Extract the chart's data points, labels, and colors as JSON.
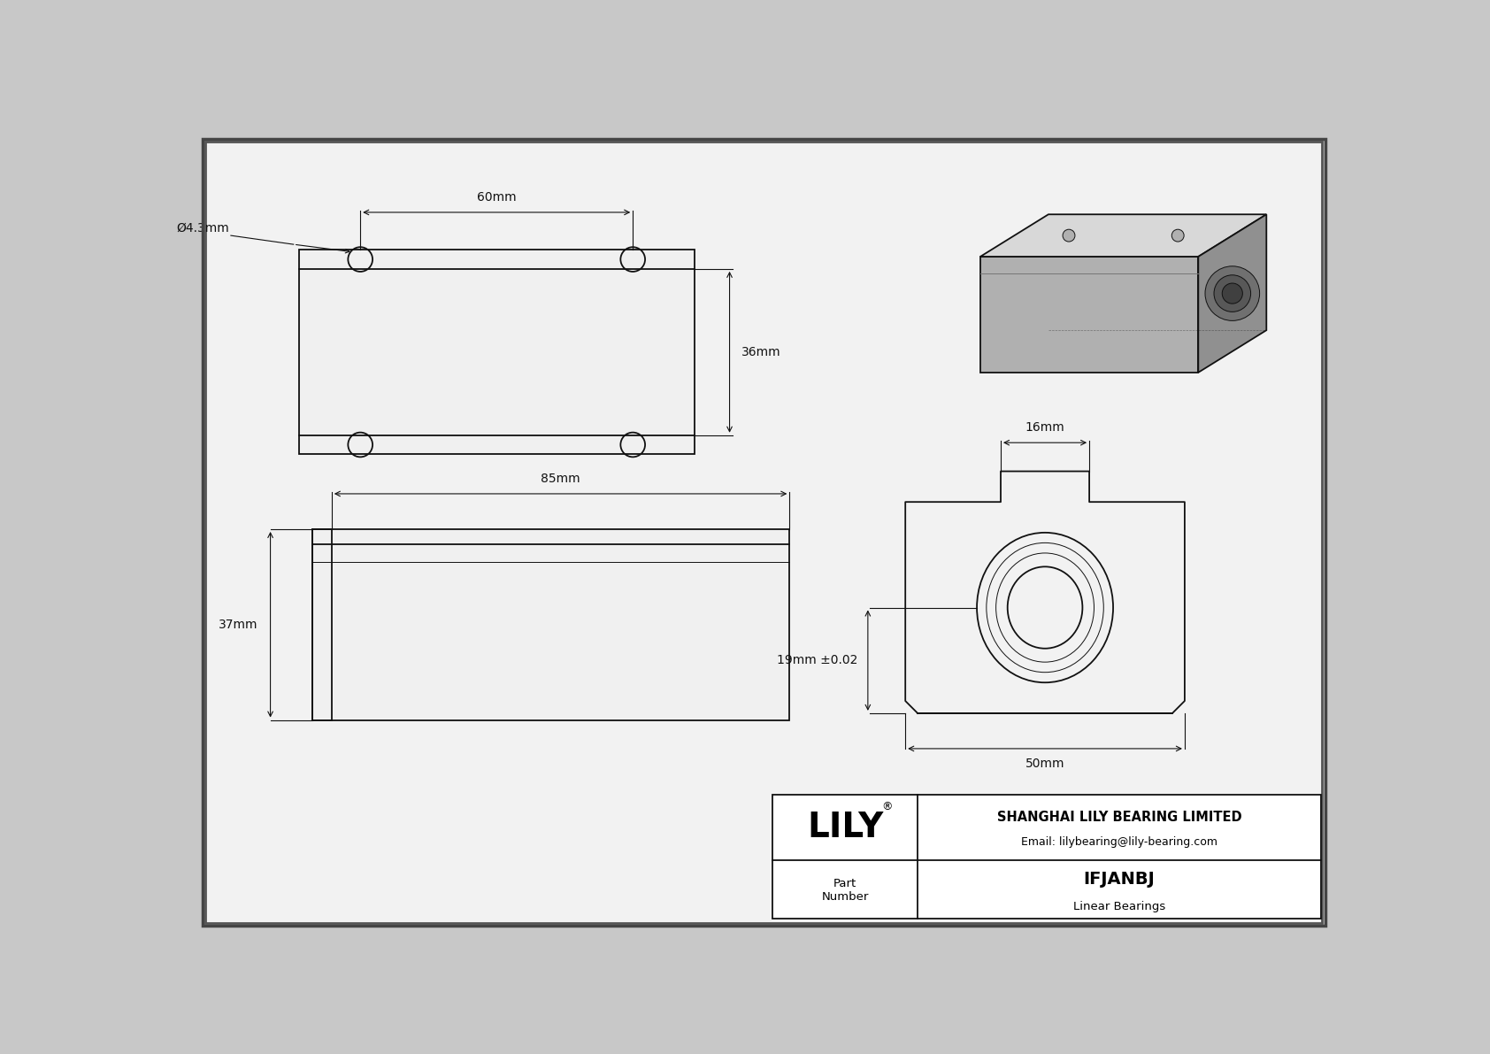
{
  "bg_color": "#c8c8c8",
  "draw_bg": "#f2f2f2",
  "line_color": "#111111",
  "title_company": "SHANGHAI LILY BEARING LIMITED",
  "title_email": "Email: lilybearing@lily-bearing.com",
  "part_number": "IFJANBJ",
  "part_type": "Linear Bearings",
  "part_label": "Part\nNumber",
  "logo_text": "LILY",
  "logo_reg": "®",
  "dim_60mm": "60mm",
  "dim_36mm": "36mm",
  "dim_4_3mm": "Ø4.3mm",
  "dim_85mm": "85mm",
  "dim_37mm": "37mm",
  "dim_16mm": "16mm",
  "dim_19mm": "19mm ±0.02",
  "dim_50mm": "50mm"
}
